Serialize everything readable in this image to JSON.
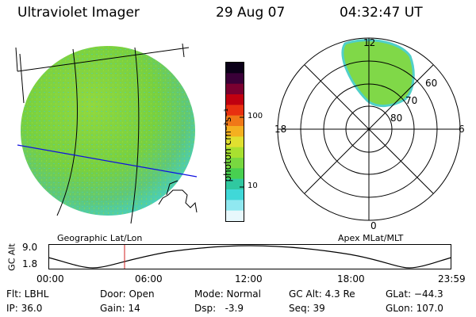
{
  "header": {
    "title": "Ultraviolet Imager",
    "date": "29 Aug 07",
    "time": "04:32:47 UT"
  },
  "geo_panel": {
    "label": "Geographic Lat/Lon"
  },
  "colorbar": {
    "unit": "photon cm⁻²s⁻¹",
    "ticks": [
      "100",
      "10"
    ],
    "colors": [
      "#0b0018",
      "#3a0038",
      "#7a0030",
      "#c00010",
      "#e83010",
      "#f07818",
      "#f4b020",
      "#e0e030",
      "#a8e030",
      "#78d840",
      "#48d050",
      "#30c8a0",
      "#40d8d8",
      "#90e8f0",
      "#e8f8fc"
    ]
  },
  "polar_panel": {
    "label": "Apex MLat/MLT",
    "mlt_labels": {
      "top": "12",
      "left": "18",
      "right": "6",
      "bottom": "0"
    },
    "lat_labels": [
      "60",
      "70",
      "80"
    ]
  },
  "altitude_strip": {
    "ylabel": "GC Alt",
    "ymax": "9.0",
    "ymin": "1.8",
    "time_ticks": [
      "00:00",
      "06:00",
      "12:00",
      "18:00",
      "23:59"
    ],
    "marker_time": "04:32:47",
    "marker_fraction": 0.189
  },
  "info": {
    "flt": "Flt: LBHL",
    "ip": "IP: 36.0",
    "door": "Door: Open",
    "gain": "Gain: 14",
    "mode": "Mode: Normal",
    "dsp": "Dsp:   -3.9",
    "gcalt": "GC Alt: 4.3 Re",
    "seq": "Seq: 39",
    "glat": "GLat: −44.3",
    "glon": "GLon: 107.0"
  }
}
